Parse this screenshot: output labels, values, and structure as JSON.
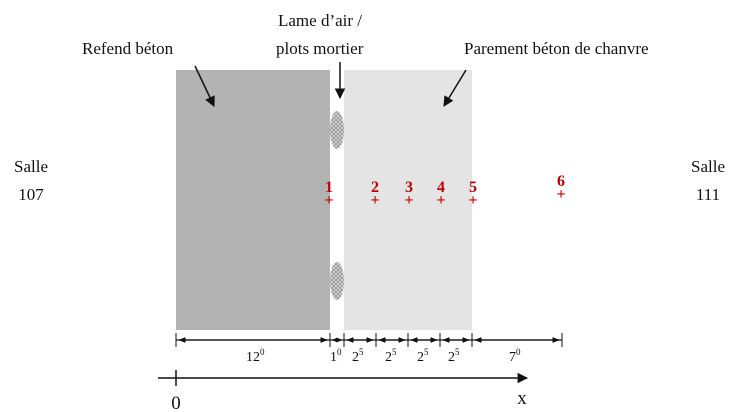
{
  "labels": {
    "refend": "Refend béton",
    "lame_line1": "Lame d’air /",
    "lame_line2": "plots mortier",
    "parement": "Parement béton de chanvre"
  },
  "rooms": {
    "left_line1": "Salle",
    "left_line2": "107",
    "right_line1": "Salle",
    "right_line2": "111"
  },
  "points": [
    {
      "label": "1"
    },
    {
      "label": "2"
    },
    {
      "label": "3"
    },
    {
      "label": "4"
    },
    {
      "label": "5"
    },
    {
      "label": "6"
    }
  ],
  "dimensions": [
    {
      "main": "12",
      "sup": "0"
    },
    {
      "main": "1",
      "sup": "0"
    },
    {
      "main": "2",
      "sup": "5"
    },
    {
      "main": "2",
      "sup": "5"
    },
    {
      "main": "2",
      "sup": "5"
    },
    {
      "main": "2",
      "sup": "5"
    },
    {
      "main": "7",
      "sup": "0"
    }
  ],
  "axis": {
    "origin": "0",
    "label": "x"
  },
  "colors": {
    "concrete": "#b3b3b3",
    "hemp": "#e4e4e4",
    "points": "#c00000"
  }
}
